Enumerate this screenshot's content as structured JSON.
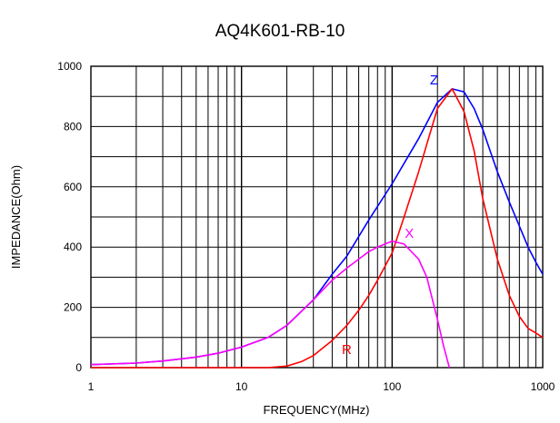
{
  "chart_data": {
    "type": "line",
    "title": "AQ4K601-RB-10",
    "xlabel": "FREQUENCY(MHz)",
    "ylabel": "IMPEDANCE(Ohm)",
    "xscale": "log",
    "xlim": [
      1,
      1000
    ],
    "ylim": [
      0,
      1000
    ],
    "grid": true,
    "x_ticks": [
      "1",
      "10",
      "100",
      "1000"
    ],
    "y_ticks": [
      "0",
      "200",
      "400",
      "600",
      "800",
      "1000"
    ],
    "series": [
      {
        "name": "Z",
        "color": "#0000ff",
        "x": [
          1,
          2,
          3,
          5,
          7,
          10,
          15,
          20,
          30,
          40,
          50,
          70,
          100,
          150,
          200,
          250,
          300,
          350,
          400,
          500,
          600,
          700,
          800,
          900,
          1000
        ],
        "y": [
          10,
          15,
          22,
          35,
          48,
          68,
          100,
          140,
          225,
          310,
          370,
          490,
          610,
          760,
          880,
          925,
          915,
          860,
          790,
          650,
          550,
          470,
          400,
          350,
          310
        ]
      },
      {
        "name": "R",
        "color": "#ff0000",
        "x": [
          1,
          3,
          10,
          15,
          20,
          25,
          30,
          40,
          50,
          60,
          70,
          80,
          100,
          120,
          150,
          200,
          250,
          300,
          350,
          400,
          500,
          600,
          700,
          800,
          900,
          1000
        ],
        "y": [
          0,
          0,
          0,
          0,
          5,
          20,
          40,
          90,
          140,
          190,
          240,
          290,
          380,
          500,
          650,
          860,
          925,
          850,
          720,
          560,
          360,
          240,
          170,
          130,
          115,
          100
        ]
      },
      {
        "name": "X",
        "color": "#ff00ff",
        "x": [
          1,
          2,
          3,
          5,
          7,
          10,
          15,
          20,
          30,
          40,
          50,
          60,
          70,
          80,
          100,
          120,
          150,
          170,
          200,
          220,
          240
        ],
        "y": [
          10,
          15,
          22,
          35,
          48,
          68,
          100,
          140,
          225,
          290,
          330,
          360,
          385,
          400,
          420,
          410,
          360,
          300,
          160,
          70,
          0
        ]
      }
    ],
    "series_label_positions": {
      "Z": {
        "x": 190,
        "y": 940
      },
      "X": {
        "x": 130,
        "y": 430
      },
      "R": {
        "x": 50,
        "y": 45
      }
    }
  }
}
